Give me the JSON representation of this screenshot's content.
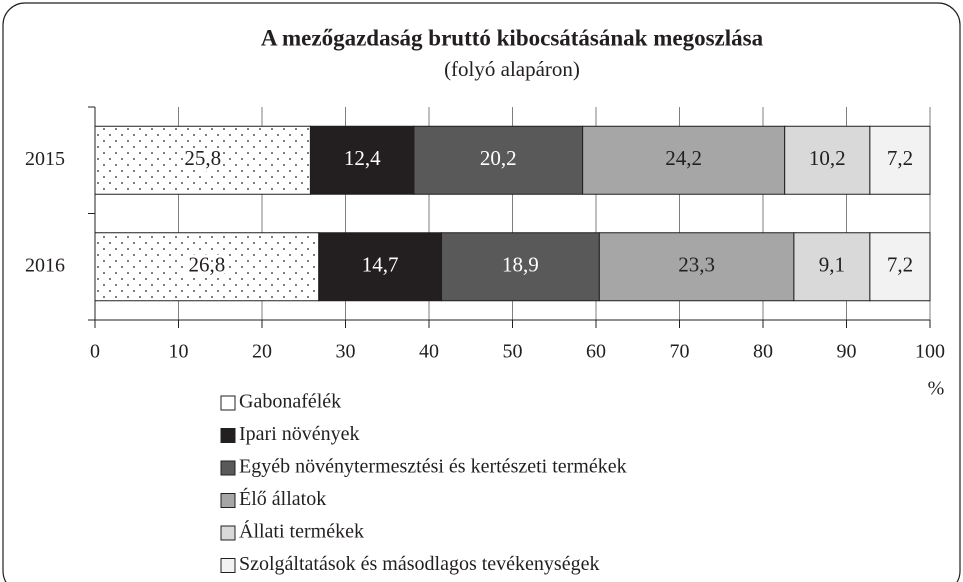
{
  "chart_data": {
    "type": "stacked_barh",
    "title": "A mezőgazdaság bruttó kibocsátásának megoszlása",
    "subtitle": "(folyó alapáron)",
    "x_label": "%",
    "categories": [
      "2015",
      "2016"
    ],
    "series": [
      {
        "name": "Gabonafélék",
        "color": "dotted",
        "values": [
          25.8,
          26.8
        ],
        "value_labels": [
          "25,8",
          "26,8"
        ]
      },
      {
        "name": "Ipari növények",
        "color": "#231f20",
        "values": [
          12.4,
          14.7
        ],
        "value_labels": [
          "12,4",
          "14,7"
        ]
      },
      {
        "name": "Egyéb növénytermesztési és kertészeti termékek",
        "color": "#595959",
        "values": [
          20.2,
          18.9
        ],
        "value_labels": [
          "20,2",
          "18,9"
        ]
      },
      {
        "name": "Élő állatok",
        "color": "#a6a6a6",
        "values": [
          24.2,
          23.3
        ],
        "value_labels": [
          "24,2",
          "23,3"
        ]
      },
      {
        "name": "Állati termékek",
        "color": "#d9d9d9",
        "values": [
          10.2,
          9.1
        ],
        "value_labels": [
          "10,2",
          "9,1"
        ]
      },
      {
        "name": "Szolgáltatások és másodlagos tevékenységek",
        "color": "#f2f2f2",
        "values": [
          7.2,
          7.2
        ],
        "value_labels": [
          "7,2",
          "7,2"
        ]
      }
    ],
    "xlim": [
      0,
      100
    ],
    "xticks": [
      0,
      10,
      20,
      30,
      40,
      50,
      60,
      70,
      80,
      90,
      100
    ],
    "grid": true
  }
}
